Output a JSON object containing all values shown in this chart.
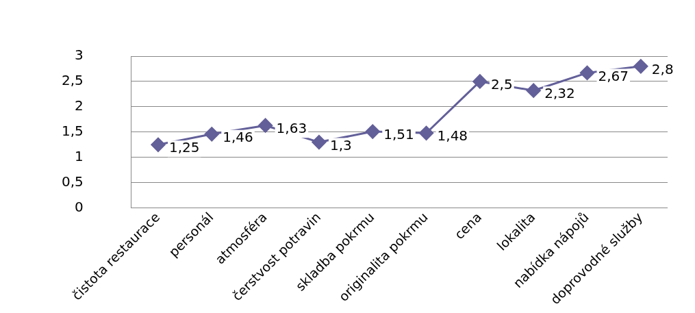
{
  "chart_data": {
    "type": "line",
    "categories": [
      "čistota restaurace",
      "personál",
      "atmosféra",
      "čerstvost potravin",
      "skladba pokrmu",
      "originalita pokrmu",
      "cena",
      "lokalita",
      "nabídka nápojů",
      "doprovodné služby"
    ],
    "series": [
      {
        "color": "#625f99",
        "values": [
          1.25,
          1.46,
          1.63,
          1.3,
          1.51,
          1.48,
          2.5,
          2.32,
          2.67,
          2.8
        ],
        "value_labels": [
          "1,25",
          "1,46",
          "1,63",
          "1,3",
          "1,51",
          "1,48",
          "2,5",
          "2,32",
          "2,67",
          "2,8"
        ]
      }
    ],
    "ylim": [
      0,
      3
    ],
    "yticks": [
      0,
      {
        "value": 0.5,
        "label": "0,5"
      },
      1,
      {
        "value": 1.5,
        "label": "1,5"
      },
      2,
      {
        "value": 2.5,
        "label": "2,5"
      },
      3
    ],
    "grid": "y",
    "legend": false,
    "marker": "diamond",
    "line_style": "solid"
  }
}
